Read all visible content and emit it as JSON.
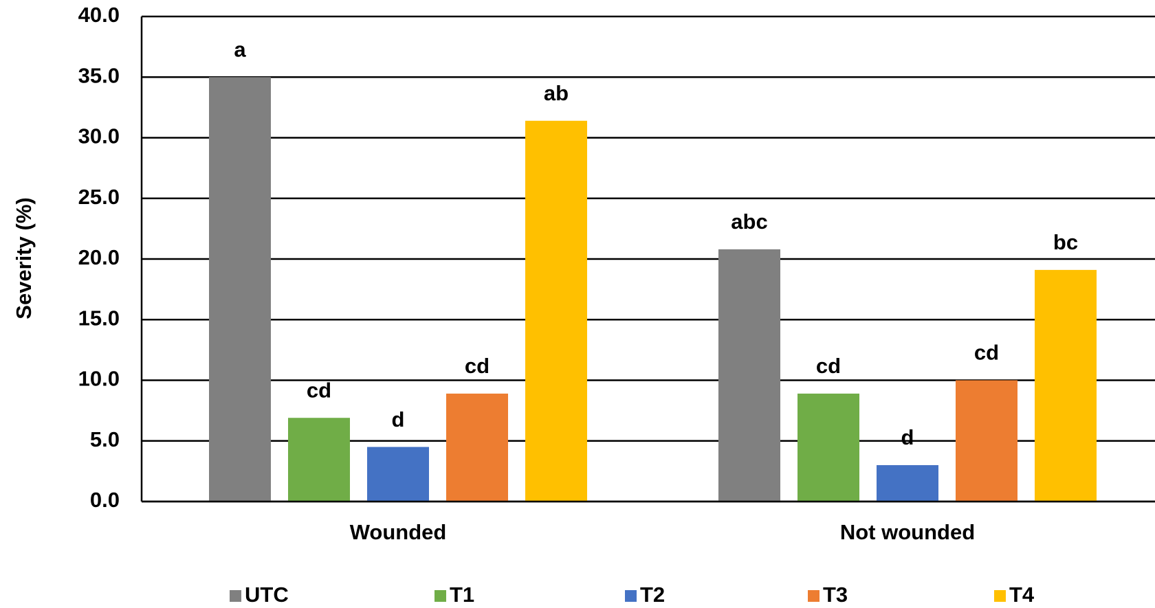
{
  "chart_data": {
    "type": "bar",
    "y_label": "Severity (%)",
    "categories": [
      "Wounded",
      "Not wounded"
    ],
    "series": [
      {
        "name": "UTC",
        "color": "#808080",
        "values": [
          35.0,
          20.8
        ],
        "letters": [
          "a",
          "abc"
        ]
      },
      {
        "name": "T1",
        "color": "#70ad47",
        "values": [
          6.9,
          8.9
        ],
        "letters": [
          "cd",
          "cd"
        ]
      },
      {
        "name": "T2",
        "color": "#4472c4",
        "values": [
          4.5,
          3.0
        ],
        "letters": [
          "d",
          "d"
        ]
      },
      {
        "name": "T3",
        "color": "#ed7d31",
        "values": [
          8.9,
          10.0
        ],
        "letters": [
          "cd",
          "cd"
        ]
      },
      {
        "name": "T4",
        "color": "#ffc000",
        "values": [
          31.4,
          19.1
        ],
        "letters": [
          "ab",
          "bc"
        ]
      }
    ],
    "ylim": [
      0,
      40
    ],
    "yticks": [
      {
        "value": 0,
        "label": "0.0"
      },
      {
        "value": 5,
        "label": "5.0"
      },
      {
        "value": 10,
        "label": "10.0"
      },
      {
        "value": 15,
        "label": "15.0"
      },
      {
        "value": 20,
        "label": "20.0"
      },
      {
        "value": 25,
        "label": "25.0"
      },
      {
        "value": 30,
        "label": "30.0"
      },
      {
        "value": 35,
        "label": "35.0"
      },
      {
        "value": 40,
        "label": "40.0"
      }
    ],
    "grid": true,
    "legend": "bottom"
  }
}
